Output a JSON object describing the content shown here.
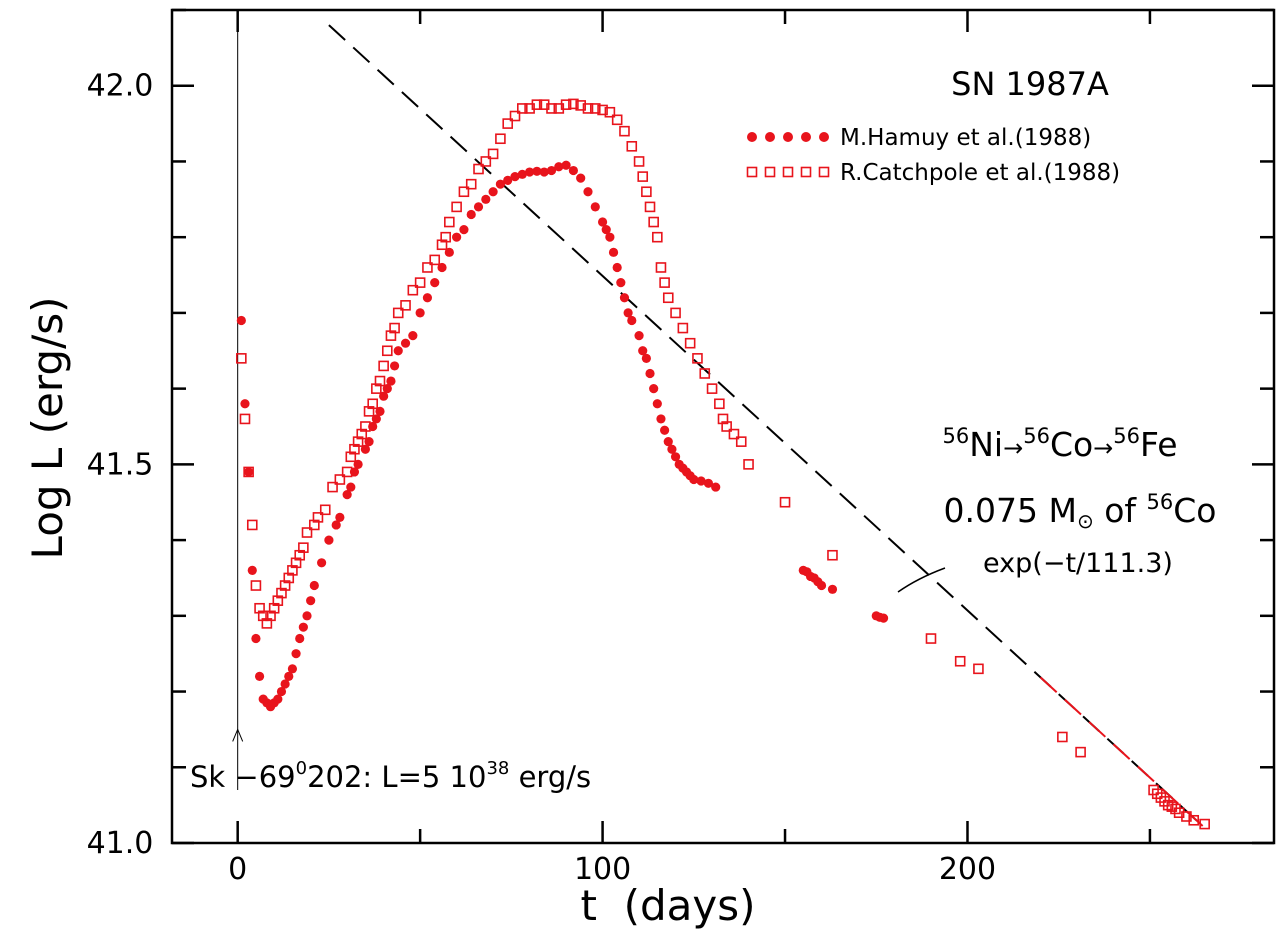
{
  "chart_data": {
    "type": "scatter",
    "title": "SN 1987A",
    "xlabel": "t  (days)",
    "ylabel": "Log L (erg/s)",
    "xlim": [
      -18,
      284
    ],
    "ylim": [
      41.0,
      42.1
    ],
    "x_ticks": [
      0,
      100,
      200
    ],
    "y_ticks": [
      41.0,
      41.5,
      42.0
    ],
    "y_tick_labels": [
      "41.0",
      "41.5",
      "42.0"
    ],
    "legend_position": "top-right",
    "colors": {
      "data": "#e8141c",
      "axis": "#000000"
    },
    "series": [
      {
        "name": "M.Hamuy et al.(1988)",
        "marker": "filled-circle",
        "x": [
          1,
          2,
          3,
          4,
          5,
          6,
          7,
          8,
          9,
          10,
          11,
          12,
          13,
          14,
          15,
          16,
          17,
          18,
          19,
          20,
          21,
          23,
          25,
          27,
          28,
          30,
          31,
          32,
          33,
          35,
          36,
          37,
          38,
          39,
          40,
          41,
          42,
          43,
          44,
          46,
          48,
          50,
          52,
          54,
          56,
          58,
          60,
          62,
          64,
          66,
          68,
          70,
          72,
          74,
          76,
          78,
          80,
          82,
          84,
          86,
          88,
          90,
          92,
          94,
          96,
          98,
          100,
          101,
          102,
          103,
          104,
          105,
          106,
          107,
          108,
          110,
          111,
          112,
          113,
          114,
          115,
          116,
          117,
          118,
          119,
          120,
          121,
          122,
          123,
          124,
          125,
          127,
          129,
          131,
          155,
          156,
          157,
          158,
          159,
          160,
          163,
          175,
          176,
          177
        ],
        "y": [
          41.69,
          41.58,
          41.49,
          41.36,
          41.27,
          41.22,
          41.19,
          41.185,
          41.18,
          41.185,
          41.19,
          41.2,
          41.21,
          41.22,
          41.23,
          41.25,
          41.27,
          41.285,
          41.3,
          41.32,
          41.34,
          41.37,
          41.4,
          41.42,
          41.43,
          41.46,
          41.47,
          41.49,
          41.5,
          41.52,
          41.53,
          41.55,
          41.56,
          41.57,
          41.59,
          41.6,
          41.61,
          41.63,
          41.65,
          41.66,
          41.67,
          41.7,
          41.72,
          41.74,
          41.76,
          41.78,
          41.8,
          41.81,
          41.83,
          41.84,
          41.85,
          41.86,
          41.87,
          41.875,
          41.88,
          41.883,
          41.886,
          41.887,
          41.886,
          41.888,
          41.893,
          41.895,
          41.888,
          41.878,
          41.86,
          41.84,
          41.82,
          41.81,
          41.8,
          41.78,
          41.76,
          41.74,
          41.72,
          41.7,
          41.69,
          41.67,
          41.65,
          41.64,
          41.62,
          41.6,
          41.58,
          41.56,
          41.545,
          41.53,
          41.52,
          41.51,
          41.5,
          41.495,
          41.49,
          41.485,
          41.48,
          41.478,
          41.475,
          41.47,
          41.36,
          41.358,
          41.352,
          41.35,
          41.345,
          41.34,
          41.335,
          41.3,
          41.298,
          41.297
        ]
      },
      {
        "name": "R.Catchpole et al.(1988)",
        "marker": "open-square",
        "x": [
          1,
          2,
          3,
          4,
          5,
          6,
          7,
          8,
          9,
          10,
          11,
          12,
          13,
          14,
          15,
          16,
          17,
          18,
          19,
          21,
          22,
          24,
          26,
          28,
          30,
          31,
          32,
          33,
          34,
          35,
          36,
          37,
          38,
          39,
          40,
          41,
          42,
          43,
          44,
          46,
          48,
          50,
          52,
          54,
          56,
          57,
          58,
          60,
          62,
          64,
          66,
          68,
          70,
          72,
          74,
          76,
          78,
          80,
          82,
          84,
          86,
          88,
          90,
          92,
          94,
          96,
          98,
          100,
          102,
          104,
          106,
          108,
          110,
          111,
          112,
          113,
          114,
          115,
          116,
          117,
          118,
          120,
          122,
          124,
          126,
          128,
          130,
          132,
          133,
          134,
          136,
          138,
          140,
          150,
          163,
          190,
          198,
          203,
          226,
          231,
          251,
          252,
          253,
          254,
          255,
          256,
          257,
          258,
          260,
          262,
          265
        ],
        "y": [
          41.64,
          41.56,
          41.49,
          41.42,
          41.34,
          41.31,
          41.3,
          41.29,
          41.3,
          41.31,
          41.32,
          41.33,
          41.34,
          41.35,
          41.36,
          41.37,
          41.38,
          41.39,
          41.41,
          41.42,
          41.43,
          41.44,
          41.47,
          41.48,
          41.49,
          41.51,
          41.52,
          41.53,
          41.54,
          41.55,
          41.57,
          41.58,
          41.6,
          41.61,
          41.63,
          41.65,
          41.67,
          41.68,
          41.7,
          41.71,
          41.73,
          41.74,
          41.76,
          41.77,
          41.79,
          41.8,
          41.82,
          41.84,
          41.86,
          41.87,
          41.89,
          41.9,
          41.91,
          41.93,
          41.95,
          41.96,
          41.97,
          41.97,
          41.975,
          41.975,
          41.97,
          41.97,
          41.975,
          41.976,
          41.974,
          41.97,
          41.97,
          41.968,
          41.965,
          41.955,
          41.94,
          41.92,
          41.9,
          41.88,
          41.86,
          41.84,
          41.82,
          41.8,
          41.76,
          41.74,
          41.72,
          41.7,
          41.68,
          41.66,
          41.64,
          41.62,
          41.6,
          41.58,
          41.56,
          41.55,
          41.54,
          41.53,
          41.5,
          41.45,
          41.38,
          41.27,
          41.24,
          41.23,
          41.14,
          41.12,
          41.07,
          41.065,
          41.06,
          41.055,
          41.05,
          41.048,
          41.045,
          41.04,
          41.035,
          41.03,
          41.025
        ]
      }
    ],
    "fit_line": {
      "x": [
        25,
        265
      ],
      "y": [
        42.08,
        41.02
      ]
    },
    "explosion_marker_x": 0,
    "annotations": {
      "decay_chain": {
        "n1": "56",
        "e1": "Ni",
        "n2": "56",
        "e2": "Co",
        "n3": "56",
        "e3": "Fe",
        "arrow": "→"
      },
      "mass_line": {
        "value": "0.075 M",
        "sun": "⊙",
        "of": " of ",
        "iso": "56",
        "elem": "Co"
      },
      "exp_label": "exp(−t/111.3)",
      "progenitor": {
        "prefix": "Sk −69",
        "sup1": "0",
        "mid": "202:  L=5 10",
        "sup2": "38",
        "suffix": " erg/s"
      }
    }
  }
}
